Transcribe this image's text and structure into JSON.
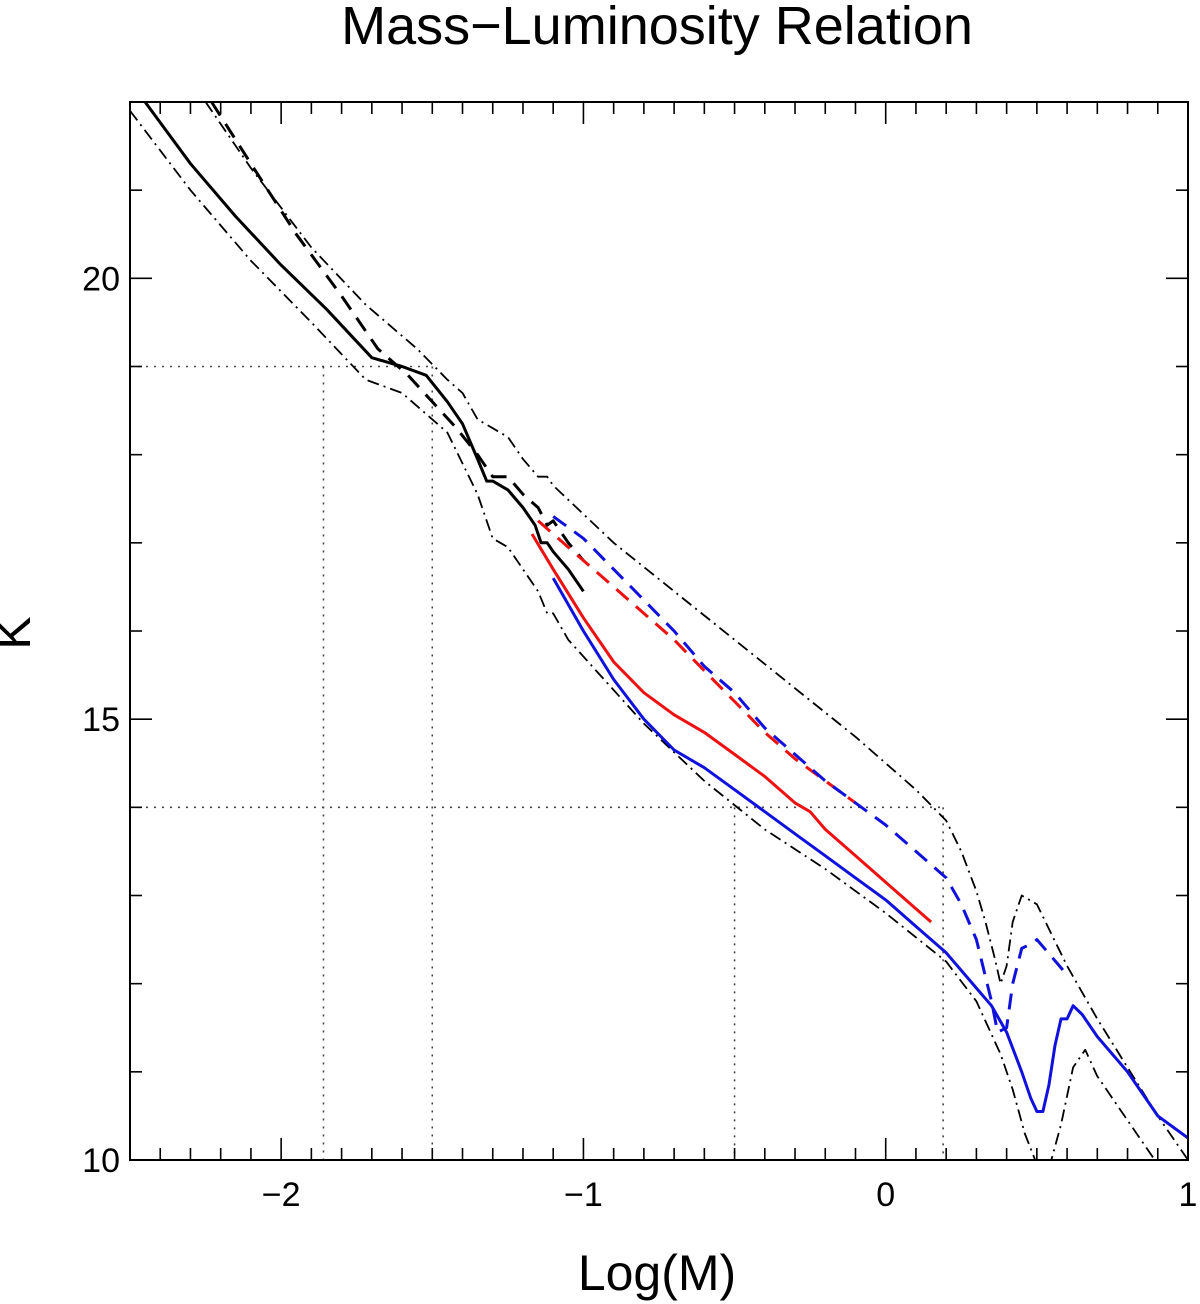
{
  "chart_data": {
    "type": "line",
    "title": "Mass−Luminosity Relation",
    "xlabel": "Log(M)",
    "ylabel": "K",
    "xlim": [
      -2.5,
      1.0
    ],
    "ylim": [
      10,
      22
    ],
    "x_ticks": [
      {
        "value": -2,
        "label": "−2"
      },
      {
        "value": -1,
        "label": "−1"
      },
      {
        "value": 0,
        "label": "0"
      },
      {
        "value": 1,
        "label": "1"
      }
    ],
    "y_ticks": [
      {
        "value": 10,
        "label": "10"
      },
      {
        "value": 15,
        "label": "15"
      },
      {
        "value": 20,
        "label": "20"
      }
    ],
    "x_minor_step": 0.1,
    "y_minor_step": 1,
    "grid": false,
    "colors": {
      "black": "#000000",
      "red": "#ee1111",
      "blue": "#1111dd",
      "guide": "#444444"
    },
    "reference_lines": [
      {
        "k": 19.0,
        "logm": [
          -1.86,
          -1.5
        ]
      },
      {
        "k": 14.0,
        "logm": [
          -0.5,
          0.19
        ]
      }
    ],
    "series": [
      {
        "style": "solid",
        "color": "black",
        "width": 3,
        "x": [
          -2.45,
          -2.3,
          -2.15,
          -2.0,
          -1.85,
          -1.7,
          -1.6,
          -1.52,
          -1.45,
          -1.4,
          -1.35,
          -1.32,
          -1.3,
          -1.25,
          -1.2,
          -1.16,
          -1.14,
          -1.12,
          -1.1,
          -1.05,
          -1.0
        ],
        "y": [
          22.0,
          21.3,
          20.7,
          20.15,
          19.65,
          19.1,
          19.0,
          18.9,
          18.6,
          18.35,
          17.95,
          17.7,
          17.7,
          17.6,
          17.4,
          17.2,
          17.0,
          17.0,
          16.9,
          16.7,
          16.45
        ]
      },
      {
        "style": "dash",
        "color": "black",
        "width": 3,
        "x": [
          -2.23,
          -2.1,
          -1.95,
          -1.8,
          -1.68,
          -1.58,
          -1.5,
          -1.42,
          -1.35,
          -1.3,
          -1.25,
          -1.2,
          -1.15,
          -1.12,
          -1.1,
          -1.05,
          -1.0
        ],
        "y": [
          22.0,
          21.3,
          20.5,
          19.8,
          19.2,
          18.9,
          18.6,
          18.3,
          18.0,
          17.75,
          17.75,
          17.55,
          17.4,
          17.2,
          17.25,
          17.0,
          16.8
        ]
      },
      {
        "style": "dashdot",
        "color": "black",
        "width": 1.8,
        "x": [
          -2.5,
          -2.3,
          -2.1,
          -1.9,
          -1.72,
          -1.6,
          -1.45,
          -1.35,
          -1.3,
          -1.25,
          -1.2,
          -1.15,
          -1.12,
          -1.1,
          -1.05,
          -0.8,
          -0.6,
          -0.4,
          -0.2,
          0.0,
          0.2,
          0.3,
          0.38,
          0.42,
          0.46,
          0.5,
          0.54,
          0.58,
          0.62,
          0.66,
          0.7,
          0.8,
          0.9,
          0.95
        ],
        "y": [
          21.9,
          21.0,
          20.2,
          19.5,
          18.85,
          18.7,
          18.25,
          17.55,
          17.05,
          16.95,
          16.7,
          16.45,
          16.2,
          16.2,
          15.9,
          14.95,
          14.3,
          13.75,
          13.3,
          12.8,
          12.25,
          11.8,
          11.2,
          10.8,
          10.3,
          9.95,
          9.9,
          10.4,
          11.05,
          11.25,
          10.95,
          10.45,
          9.95,
          9.7
        ]
      },
      {
        "style": "dashdot",
        "color": "black",
        "width": 1.8,
        "x": [
          -2.25,
          -2.1,
          -1.9,
          -1.72,
          -1.55,
          -1.45,
          -1.4,
          -1.35,
          -1.3,
          -1.25,
          -1.2,
          -1.15,
          -1.12,
          -1.1,
          -0.9,
          -0.7,
          -0.5,
          -0.3,
          -0.1,
          0.1,
          0.2,
          0.25,
          0.3,
          0.33,
          0.36,
          0.38,
          0.4,
          0.42,
          0.45,
          0.5,
          0.55,
          0.6,
          0.7,
          0.8,
          0.9,
          1.0
        ],
        "y": [
          22.0,
          21.25,
          20.35,
          19.7,
          19.2,
          18.85,
          18.7,
          18.4,
          18.3,
          18.2,
          17.95,
          17.75,
          17.75,
          17.65,
          17.0,
          16.45,
          15.9,
          15.35,
          14.8,
          14.2,
          13.85,
          13.5,
          13.05,
          12.7,
          12.3,
          12.0,
          12.2,
          12.7,
          13.0,
          12.9,
          12.55,
          12.2,
          11.6,
          11.05,
          10.5,
          10.0
        ]
      },
      {
        "style": "solid",
        "color": "red",
        "width": 3,
        "x": [
          -1.17,
          -1.1,
          -1.0,
          -0.9,
          -0.8,
          -0.7,
          -0.6,
          -0.5,
          -0.4,
          -0.3,
          -0.25,
          -0.2,
          -0.1,
          0.0,
          0.1,
          0.15
        ],
        "y": [
          17.1,
          16.7,
          16.15,
          15.65,
          15.3,
          15.05,
          14.85,
          14.6,
          14.35,
          14.05,
          13.95,
          13.75,
          13.45,
          13.15,
          12.85,
          12.7
        ]
      },
      {
        "style": "dash",
        "color": "red",
        "width": 3,
        "x": [
          -1.15,
          -1.1,
          -1.0,
          -0.9,
          -0.8,
          -0.7,
          -0.6,
          -0.5,
          -0.4,
          -0.3,
          -0.2,
          -0.1
        ],
        "y": [
          17.25,
          17.1,
          16.8,
          16.5,
          16.2,
          15.9,
          15.55,
          15.2,
          14.85,
          14.55,
          14.3,
          14.05
        ]
      },
      {
        "style": "solid",
        "color": "blue",
        "width": 3,
        "x": [
          -1.1,
          -1.0,
          -0.9,
          -0.8,
          -0.7,
          -0.6,
          -0.5,
          -0.4,
          -0.3,
          -0.2,
          -0.1,
          0.0,
          0.1,
          0.2,
          0.3,
          0.35,
          0.4,
          0.45,
          0.48,
          0.5,
          0.52,
          0.54,
          0.56,
          0.58,
          0.6,
          0.62,
          0.65,
          0.7,
          0.8,
          0.9,
          1.0
        ],
        "y": [
          16.6,
          16.0,
          15.45,
          15.0,
          14.65,
          14.45,
          14.2,
          13.95,
          13.7,
          13.45,
          13.2,
          12.95,
          12.65,
          12.35,
          11.95,
          11.75,
          11.45,
          11.0,
          10.7,
          10.55,
          10.55,
          10.85,
          11.3,
          11.6,
          11.6,
          11.75,
          11.65,
          11.4,
          11.0,
          10.5,
          10.25
        ]
      },
      {
        "style": "dash",
        "color": "blue",
        "width": 3,
        "x": [
          -1.1,
          -1.0,
          -0.9,
          -0.8,
          -0.7,
          -0.6,
          -0.5,
          -0.4,
          -0.3,
          -0.2,
          -0.1,
          0.0,
          0.1,
          0.2,
          0.25,
          0.3,
          0.35,
          0.37,
          0.4,
          0.42,
          0.45,
          0.48,
          0.5,
          0.55,
          0.6
        ],
        "y": [
          17.3,
          17.05,
          16.7,
          16.35,
          16.0,
          15.6,
          15.3,
          14.9,
          14.6,
          14.3,
          14.05,
          13.8,
          13.5,
          13.2,
          12.9,
          12.5,
          11.8,
          11.45,
          11.5,
          12.0,
          12.4,
          12.45,
          12.5,
          12.3,
          12.1
        ]
      }
    ]
  }
}
